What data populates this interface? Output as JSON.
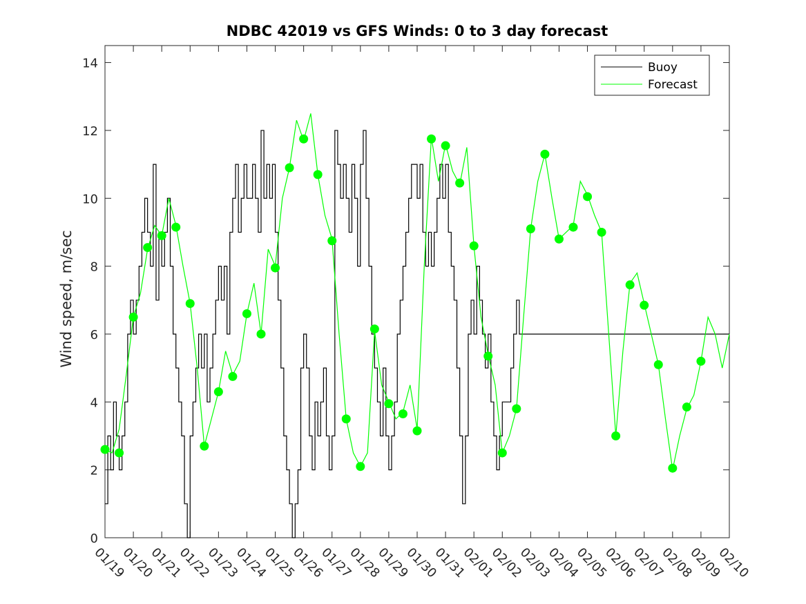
{
  "chart_data": {
    "type": "line",
    "title": "NDBC 42019 vs GFS Winds: 0 to 3 day forecast",
    "xlabel": "",
    "ylabel": "Wind speed, m/sec",
    "ylim": [
      0,
      14.5
    ],
    "yticks": [
      0,
      2,
      4,
      6,
      8,
      10,
      12,
      14
    ],
    "xlim": [
      0,
      22
    ],
    "xtick_labels": [
      "01/19",
      "01/20",
      "01/21",
      "01/22",
      "01/23",
      "01/24",
      "01/25",
      "01/26",
      "01/27",
      "01/28",
      "01/29",
      "01/30",
      "01/31",
      "02/01",
      "02/02",
      "02/03",
      "02/04",
      "02/05",
      "02/06",
      "02/07",
      "02/08",
      "02/09",
      "02/10"
    ],
    "legend": {
      "position": "top-right",
      "entries": [
        "Buoy",
        "Forecast"
      ]
    },
    "colors": {
      "buoy": "#000000",
      "forecast": "#00ff00",
      "markers": "#00ff00",
      "axes": "#262626"
    },
    "series": [
      {
        "name": "Buoy",
        "x": [
          0,
          0.1,
          0.2,
          0.3,
          0.4,
          0.5,
          0.6,
          0.7,
          0.8,
          0.9,
          1.0,
          1.1,
          1.2,
          1.3,
          1.4,
          1.5,
          1.6,
          1.7,
          1.8,
          1.9,
          2.0,
          2.1,
          2.2,
          2.3,
          2.4,
          2.5,
          2.6,
          2.7,
          2.8,
          2.9,
          3.0,
          3.1,
          3.2,
          3.3,
          3.4,
          3.5,
          3.6,
          3.7,
          3.8,
          3.9,
          4.0,
          4.1,
          4.2,
          4.3,
          4.4,
          4.5,
          4.6,
          4.7,
          4.8,
          4.9,
          5.0,
          5.1,
          5.2,
          5.3,
          5.4,
          5.5,
          5.6,
          5.7,
          5.8,
          5.9,
          6.0,
          6.1,
          6.2,
          6.3,
          6.4,
          6.5,
          6.6,
          6.7,
          6.8,
          6.9,
          7.0,
          7.1,
          7.2,
          7.3,
          7.4,
          7.5,
          7.6,
          7.7,
          7.8,
          7.9,
          8.0,
          8.1,
          8.2,
          8.3,
          8.4,
          8.5,
          8.6,
          8.7,
          8.8,
          8.9,
          9.0,
          9.1,
          9.2,
          9.3,
          9.4,
          9.5,
          9.6,
          9.7,
          9.8,
          9.9,
          10.0,
          10.1,
          10.2,
          10.3,
          10.4,
          10.5,
          10.6,
          10.7,
          10.8,
          10.9,
          11.0,
          11.1,
          11.2,
          11.3,
          11.4,
          11.5,
          11.6,
          11.7,
          11.8,
          11.9,
          12.0,
          12.1,
          12.2,
          12.3,
          12.4,
          12.5,
          12.6,
          12.7,
          12.8,
          12.9,
          13.0,
          13.1,
          13.2,
          13.3,
          13.4,
          13.5,
          13.6,
          13.7,
          13.8,
          13.9,
          14.0,
          14.1,
          14.2,
          14.3,
          14.4,
          14.5,
          14.6,
          14.7,
          14.8,
          14.9,
          15.0,
          15.1,
          15.2,
          15.3,
          15.4,
          15.5,
          15.6,
          15.7,
          15.8,
          15.9,
          16.0,
          16.1,
          16.2,
          16.3,
          16.4,
          16.5,
          16.6,
          16.7,
          16.8,
          16.9,
          17.0,
          17.1,
          17.2,
          17.3,
          17.4,
          17.5,
          17.6,
          17.7,
          17.8,
          17.9,
          18.0,
          18.1,
          18.2,
          18.3,
          18.4,
          18.5,
          18.6,
          18.7,
          18.8,
          18.9,
          19.0,
          19.1,
          19.2,
          19.3,
          19.4,
          19.5,
          19.6,
          19.7,
          19.8,
          19.9,
          20.0,
          20.1,
          20.2,
          20.3,
          20.4,
          20.5,
          20.6,
          20.7,
          20.8,
          20.9,
          21.0,
          21.1,
          21.2,
          21.3,
          21.4,
          21.5,
          21.6,
          21.7,
          21.8,
          21.9,
          22.0
        ],
        "y": [
          1,
          3,
          2,
          4,
          3,
          2,
          3,
          4,
          6,
          7,
          6,
          7,
          8,
          9,
          10,
          9,
          8,
          11,
          7,
          9,
          8,
          9,
          10,
          8,
          6,
          5,
          4,
          3,
          1,
          0,
          3,
          4,
          5,
          6,
          5,
          6,
          4,
          5,
          6,
          7,
          8,
          7,
          8,
          6,
          9,
          10,
          11,
          9,
          10,
          11,
          10,
          10,
          11,
          10,
          9,
          12,
          10,
          11,
          10,
          11,
          9,
          7,
          5,
          3,
          2,
          1,
          0,
          1,
          2,
          5,
          6,
          5,
          3,
          2,
          4,
          3,
          4,
          5,
          3,
          2,
          3,
          12,
          11,
          10,
          11,
          10,
          9,
          11,
          10,
          8,
          11,
          12,
          10,
          8,
          6,
          5,
          4,
          3,
          5,
          3,
          2,
          3,
          4,
          6,
          7,
          8,
          9,
          10,
          11,
          11,
          10,
          11,
          9,
          8,
          9,
          8,
          9,
          10,
          11,
          10,
          11,
          9,
          8,
          7,
          5,
          3,
          1,
          3,
          6,
          7,
          6,
          8,
          7,
          6,
          5,
          6,
          4,
          3,
          2,
          3,
          4,
          4,
          4,
          5,
          6,
          7,
          6,
          6,
          6,
          6,
          6,
          6,
          6,
          6,
          6,
          6,
          6,
          6,
          6,
          6,
          6,
          6,
          6,
          6,
          6,
          6,
          6,
          6,
          6,
          6,
          6,
          6,
          6,
          6,
          6,
          6,
          6,
          6,
          6,
          6,
          6,
          6,
          6,
          6,
          6,
          6,
          6,
          6,
          6,
          6,
          6,
          6,
          6,
          6,
          6,
          6,
          6,
          6,
          6,
          6,
          6,
          6,
          6,
          6,
          6,
          6,
          6,
          6,
          6,
          6,
          6,
          6,
          6,
          6,
          6,
          6,
          6,
          6,
          6,
          6,
          6
        ]
      },
      {
        "name": "Forecast",
        "x": [
          0,
          0.25,
          0.5,
          0.75,
          1.0,
          1.25,
          1.5,
          1.75,
          2.0,
          2.25,
          2.5,
          2.75,
          3.0,
          3.25,
          3.5,
          3.75,
          4.0,
          4.25,
          4.5,
          4.75,
          5.0,
          5.25,
          5.5,
          5.75,
          6.0,
          6.25,
          6.5,
          6.75,
          7.0,
          7.25,
          7.5,
          7.75,
          8.0,
          8.25,
          8.5,
          8.75,
          9.0,
          9.25,
          9.5,
          9.75,
          10.0,
          10.25,
          10.5,
          10.75,
          11.0,
          11.25,
          11.5,
          11.75,
          12.0,
          12.25,
          12.5,
          12.75,
          13.0,
          13.25,
          13.5,
          13.75,
          14.0,
          14.25,
          14.5,
          14.75,
          15.0,
          15.25,
          15.5,
          15.75,
          16.0,
          16.25,
          16.5,
          16.75,
          17.0,
          17.25,
          17.5,
          17.75,
          18.0,
          18.25,
          18.5,
          18.75,
          19.0,
          19.25,
          19.5,
          19.75,
          20.0,
          20.25,
          20.5,
          20.75,
          21.0,
          21.25,
          21.5,
          21.75,
          22.0
        ],
        "y": [
          2.6,
          2.5,
          3.2,
          4.8,
          6.5,
          7.2,
          8.5,
          9.2,
          8.9,
          10.0,
          9.2,
          8.0,
          6.9,
          5.0,
          2.7,
          3.5,
          4.3,
          5.5,
          4.8,
          5.2,
          6.6,
          7.5,
          6.0,
          8.5,
          8.0,
          10.0,
          10.9,
          12.3,
          11.7,
          12.5,
          10.7,
          9.5,
          8.8,
          6.0,
          3.5,
          2.5,
          2.1,
          2.5,
          6.1,
          4.5,
          4.0,
          3.5,
          3.7,
          4.5,
          3.2,
          8.0,
          11.8,
          10.5,
          11.6,
          10.8,
          10.4,
          11.5,
          8.6,
          6.5,
          5.4,
          4.5,
          2.5,
          3.0,
          3.8,
          6.5,
          9.1,
          10.5,
          11.3,
          10.0,
          8.8,
          9.0,
          9.2,
          10.5,
          10.1,
          9.5,
          9.0,
          6.0,
          3.0,
          5.5,
          7.5,
          7.8,
          6.9,
          6.0,
          5.1,
          3.5,
          2.0,
          3.0,
          3.8,
          4.2,
          5.2,
          6.5,
          6.0,
          5.0,
          6.0
        ]
      }
    ],
    "markers": {
      "x": [
        0,
        0.5,
        1,
        1.5,
        2,
        2.5,
        3,
        3.5,
        4,
        4.5,
        5,
        5.5,
        6,
        6.5,
        7,
        7.5,
        8,
        8.5,
        9,
        9.5,
        10,
        10.5,
        11,
        11.5,
        12,
        12.5,
        13,
        13.5,
        14,
        14.5,
        15,
        15.5,
        16,
        16.5,
        17,
        17.5,
        18,
        18.5,
        19,
        19.5,
        20,
        20.5,
        21
      ],
      "y": [
        2.6,
        2.5,
        6.5,
        8.55,
        8.9,
        9.15,
        6.9,
        2.7,
        4.3,
        4.75,
        6.6,
        6.0,
        7.95,
        10.9,
        11.75,
        10.7,
        8.75,
        3.5,
        2.1,
        6.15,
        3.95,
        3.65,
        3.15,
        11.75,
        11.55,
        10.45,
        8.6,
        5.35,
        2.5,
        3.8,
        9.1,
        11.3,
        8.8,
        9.15,
        10.05,
        9.0,
        3.0,
        7.45,
        6.85,
        5.1,
        2.05,
        3.85,
        5.2
      ]
    }
  }
}
